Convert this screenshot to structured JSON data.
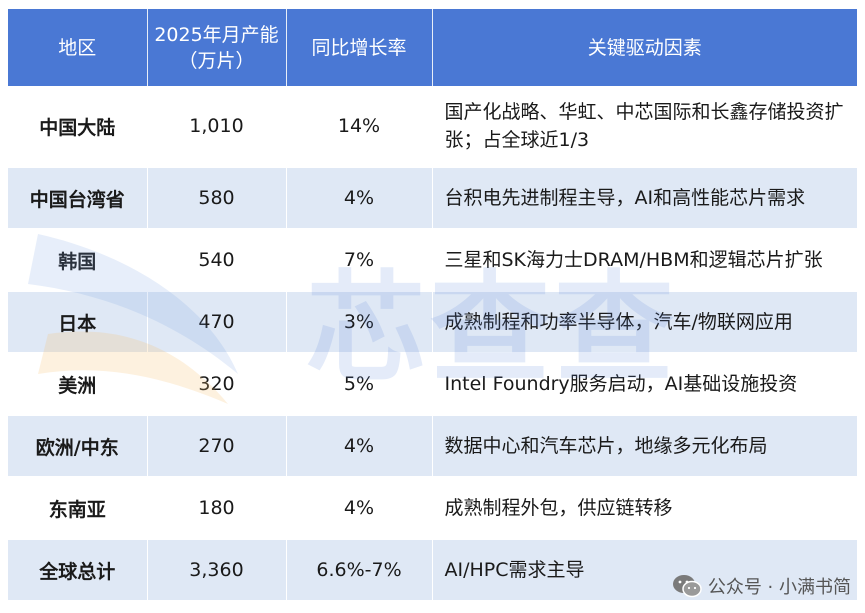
{
  "table": {
    "headers": [
      "地区",
      "2025年月产能（万片）",
      "同比增长率",
      "关键驱动因素"
    ],
    "rows": [
      {
        "region": "中国大陆",
        "capacity": "1,010",
        "growth": "14%",
        "drivers": "国产化战略、华虹、中芯国际和长鑫存储投资扩张；占全球近1/3"
      },
      {
        "region": "中国台湾省",
        "capacity": "580",
        "growth": "4%",
        "drivers": "台积电先进制程主导，AI和高性能芯片需求"
      },
      {
        "region": "韩国",
        "capacity": "540",
        "growth": "7%",
        "drivers": "三星和SK海力士DRAM/HBM和逻辑芯片扩张"
      },
      {
        "region": "日本",
        "capacity": "470",
        "growth": "3%",
        "drivers": "成熟制程和功率半导体，汽车/物联网应用"
      },
      {
        "region": "美洲",
        "capacity": "320",
        "growth": "5%",
        "drivers": "Intel Foundry服务启动，AI基础设施投资"
      },
      {
        "region": "欧洲/中东",
        "capacity": "270",
        "growth": "4%",
        "drivers": "数据中心和汽车芯片，地缘多元化布局"
      },
      {
        "region": "东南亚",
        "capacity": "180",
        "growth": "4%",
        "drivers": "成熟制程外包，供应链转移"
      },
      {
        "region": "全球总计",
        "capacity": "3,360",
        "growth": "6.6%-7%",
        "drivers": "AI/HPC需求主导"
      }
    ]
  },
  "watermark": {
    "text": "芯查查"
  },
  "footer": {
    "wechat_label": "公众号 · 小满书简"
  },
  "colors": {
    "header_bg": "#4a78d4",
    "row_alt_bg": "#dfe8f5",
    "watermark": "#5a82d7"
  }
}
